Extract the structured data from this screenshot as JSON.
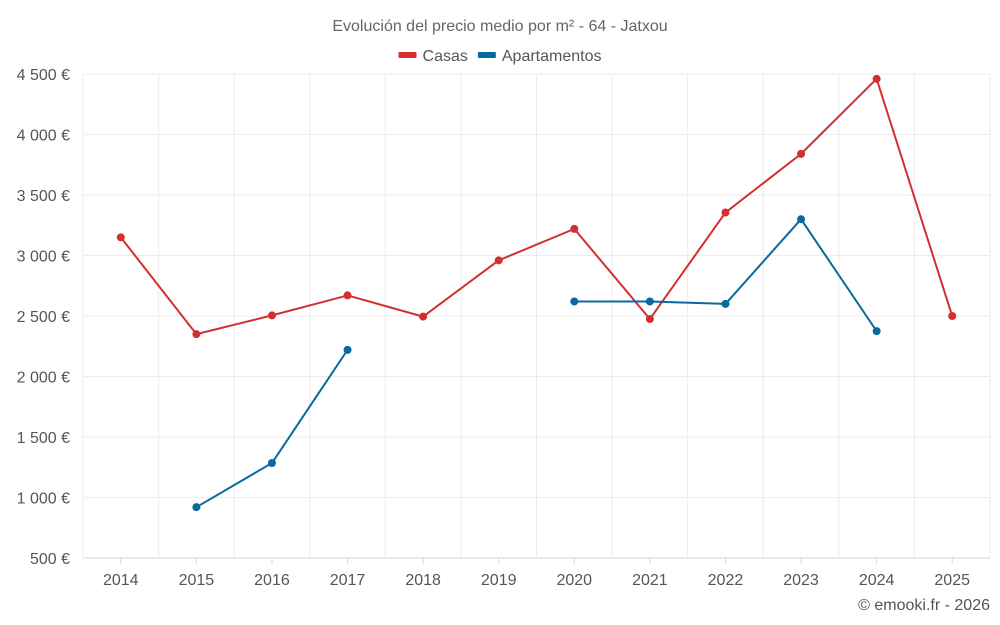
{
  "chart_data": {
    "type": "line",
    "title": "Evolución del precio medio por m² - 64 - Jatxou",
    "categories": [
      "2014",
      "2015",
      "2016",
      "2017",
      "2018",
      "2019",
      "2020",
      "2021",
      "2022",
      "2023",
      "2024",
      "2025"
    ],
    "ylim": [
      500,
      4500
    ],
    "yticks": [
      500,
      1000,
      1500,
      2000,
      2500,
      3000,
      3500,
      4000,
      4500
    ],
    "ytick_labels": [
      "500 €",
      "1 000 €",
      "1 500 €",
      "2 000 €",
      "2 500 €",
      "3 000 €",
      "3 500 €",
      "4 000 €",
      "4 500 €"
    ],
    "grid": true,
    "legend_position": "top-center",
    "series": [
      {
        "name": "Casas",
        "color": "#d32f2f",
        "values": [
          3150,
          2350,
          2505,
          2670,
          2495,
          2960,
          3220,
          2475,
          3355,
          3840,
          4460,
          2500
        ]
      },
      {
        "name": "Apartamentos",
        "color": "#0869a0",
        "values": [
          null,
          920,
          1285,
          2220,
          null,
          null,
          2620,
          2620,
          2600,
          3300,
          2375,
          null
        ]
      }
    ]
  },
  "credit": "© emooki.fr - 2026"
}
